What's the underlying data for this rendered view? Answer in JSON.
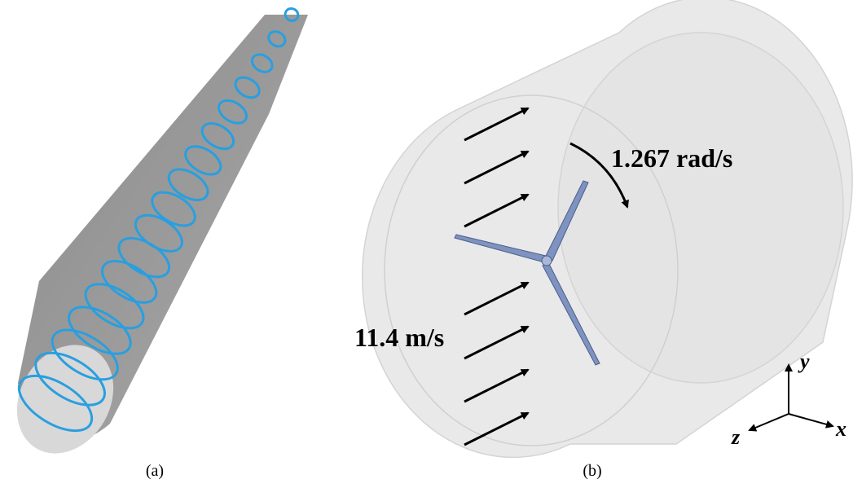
{
  "panels": [
    {
      "label": "(a)"
    },
    {
      "label": "(b)",
      "rotation_label": "1.267 rad/s",
      "velocity_label": "11.4 m/s",
      "axes": {
        "y": "y",
        "z": "z",
        "x": "x"
      }
    }
  ]
}
